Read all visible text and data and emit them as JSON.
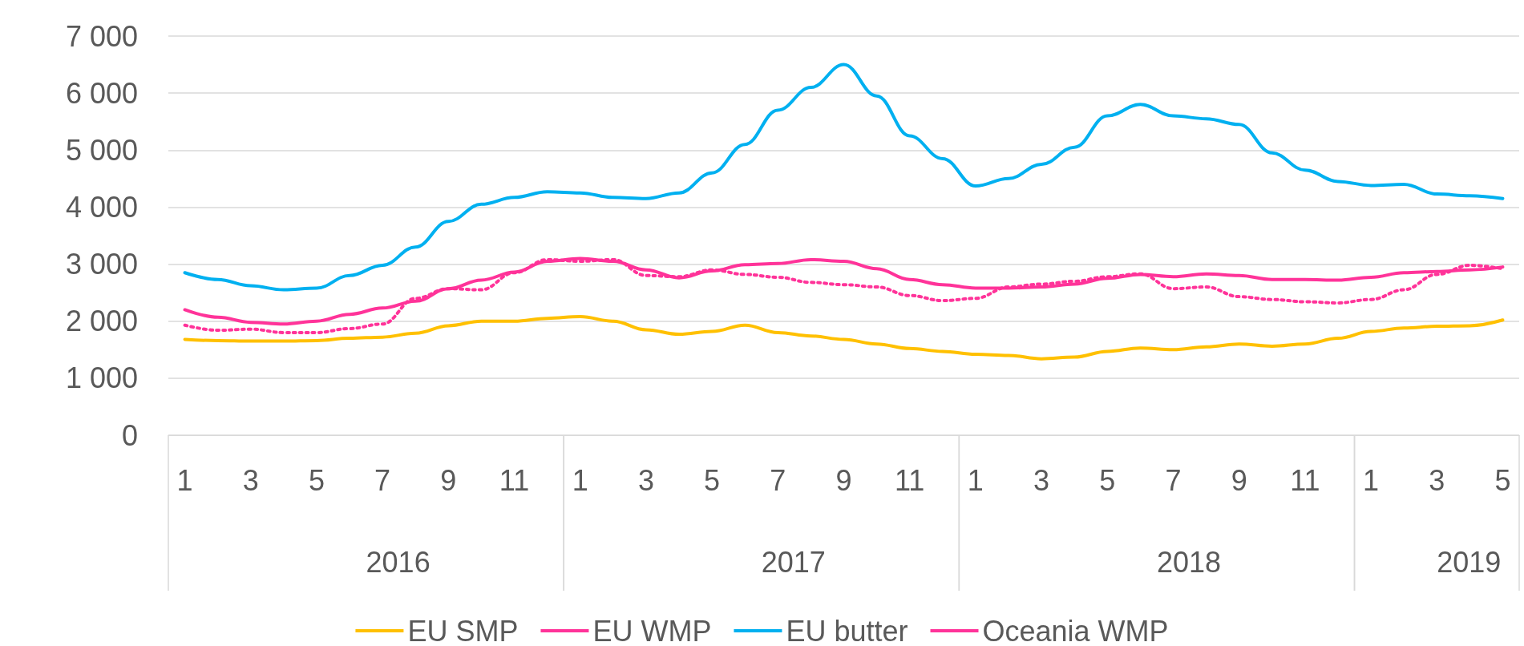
{
  "chart_data": {
    "type": "line",
    "categories": [
      "1",
      null,
      "3",
      null,
      "5",
      null,
      "7",
      null,
      "9",
      null,
      "11",
      null,
      "1",
      null,
      "3",
      null,
      "5",
      null,
      "7",
      null,
      "9",
      null,
      "11",
      null,
      "1",
      null,
      "3",
      null,
      "5",
      null,
      "7",
      null,
      "9",
      null,
      "11",
      null,
      "1",
      null,
      "3",
      null,
      "5"
    ],
    "annotations": [
      "2016",
      "2017",
      "2018",
      "2019"
    ],
    "series": [
      {
        "name": "EU SMP",
        "color": "#ffc000",
        "values": [
          1680,
          1660,
          1650,
          1650,
          1660,
          1700,
          1720,
          1790,
          1920,
          2000,
          2000,
          2050,
          2080,
          2000,
          1850,
          1770,
          1820,
          1930,
          1800,
          1740,
          1680,
          1600,
          1520,
          1470,
          1420,
          1400,
          1340,
          1370,
          1470,
          1530,
          1500,
          1550,
          1600,
          1560,
          1600,
          1700,
          1820,
          1880,
          1910,
          1920,
          2020
        ]
      },
      {
        "name": "EU WMP",
        "color": "#ff3399",
        "values": [
          2200,
          2070,
          1980,
          1950,
          2000,
          2120,
          2230,
          2350,
          2570,
          2720,
          2860,
          3050,
          3100,
          3050,
          2900,
          2760,
          2880,
          2990,
          3010,
          3080,
          3050,
          2920,
          2730,
          2640,
          2580,
          2580,
          2600,
          2650,
          2750,
          2820,
          2780,
          2830,
          2800,
          2730,
          2730,
          2720,
          2770,
          2850,
          2870,
          2900,
          2950
        ]
      },
      {
        "name": "EU butter",
        "color": "#00b0f0",
        "values": [
          2850,
          2730,
          2620,
          2550,
          2580,
          2800,
          2980,
          3300,
          3750,
          4050,
          4170,
          4270,
          4250,
          4170,
          4150,
          4250,
          4600,
          5100,
          5700,
          6100,
          6500,
          5950,
          5250,
          4850,
          4370,
          4500,
          4750,
          5050,
          5600,
          5800,
          5600,
          5550,
          5450,
          4950,
          4650,
          4450,
          4380,
          4400,
          4230,
          4200,
          4150
        ]
      },
      {
        "name": "Oceania WMP",
        "color": "#ff3399",
        "line_style": "dotted",
        "values": [
          1930,
          1840,
          1860,
          1800,
          1800,
          1870,
          1950,
          2400,
          2570,
          2550,
          2850,
          3080,
          3050,
          3080,
          2800,
          2780,
          2900,
          2820,
          2770,
          2680,
          2640,
          2600,
          2450,
          2360,
          2400,
          2600,
          2650,
          2700,
          2780,
          2830,
          2570,
          2600,
          2430,
          2380,
          2340,
          2320,
          2380,
          2550,
          2820,
          2980,
          2920
        ]
      }
    ],
    "ylim": [
      0,
      7000
    ],
    "yticks": [
      0,
      {
        "value": 1000,
        "label": "1 000"
      },
      {
        "value": 2000,
        "label": "2 000"
      },
      {
        "value": 3000,
        "label": "3 000"
      },
      {
        "value": 4000,
        "label": "4 000"
      },
      {
        "value": 5000,
        "label": "5 000"
      },
      {
        "value": 6000,
        "label": "6 000"
      },
      {
        "value": 7000,
        "label": "7 000"
      }
    ],
    "grid": "y",
    "legend": "bottom",
    "line_style": "solid"
  }
}
